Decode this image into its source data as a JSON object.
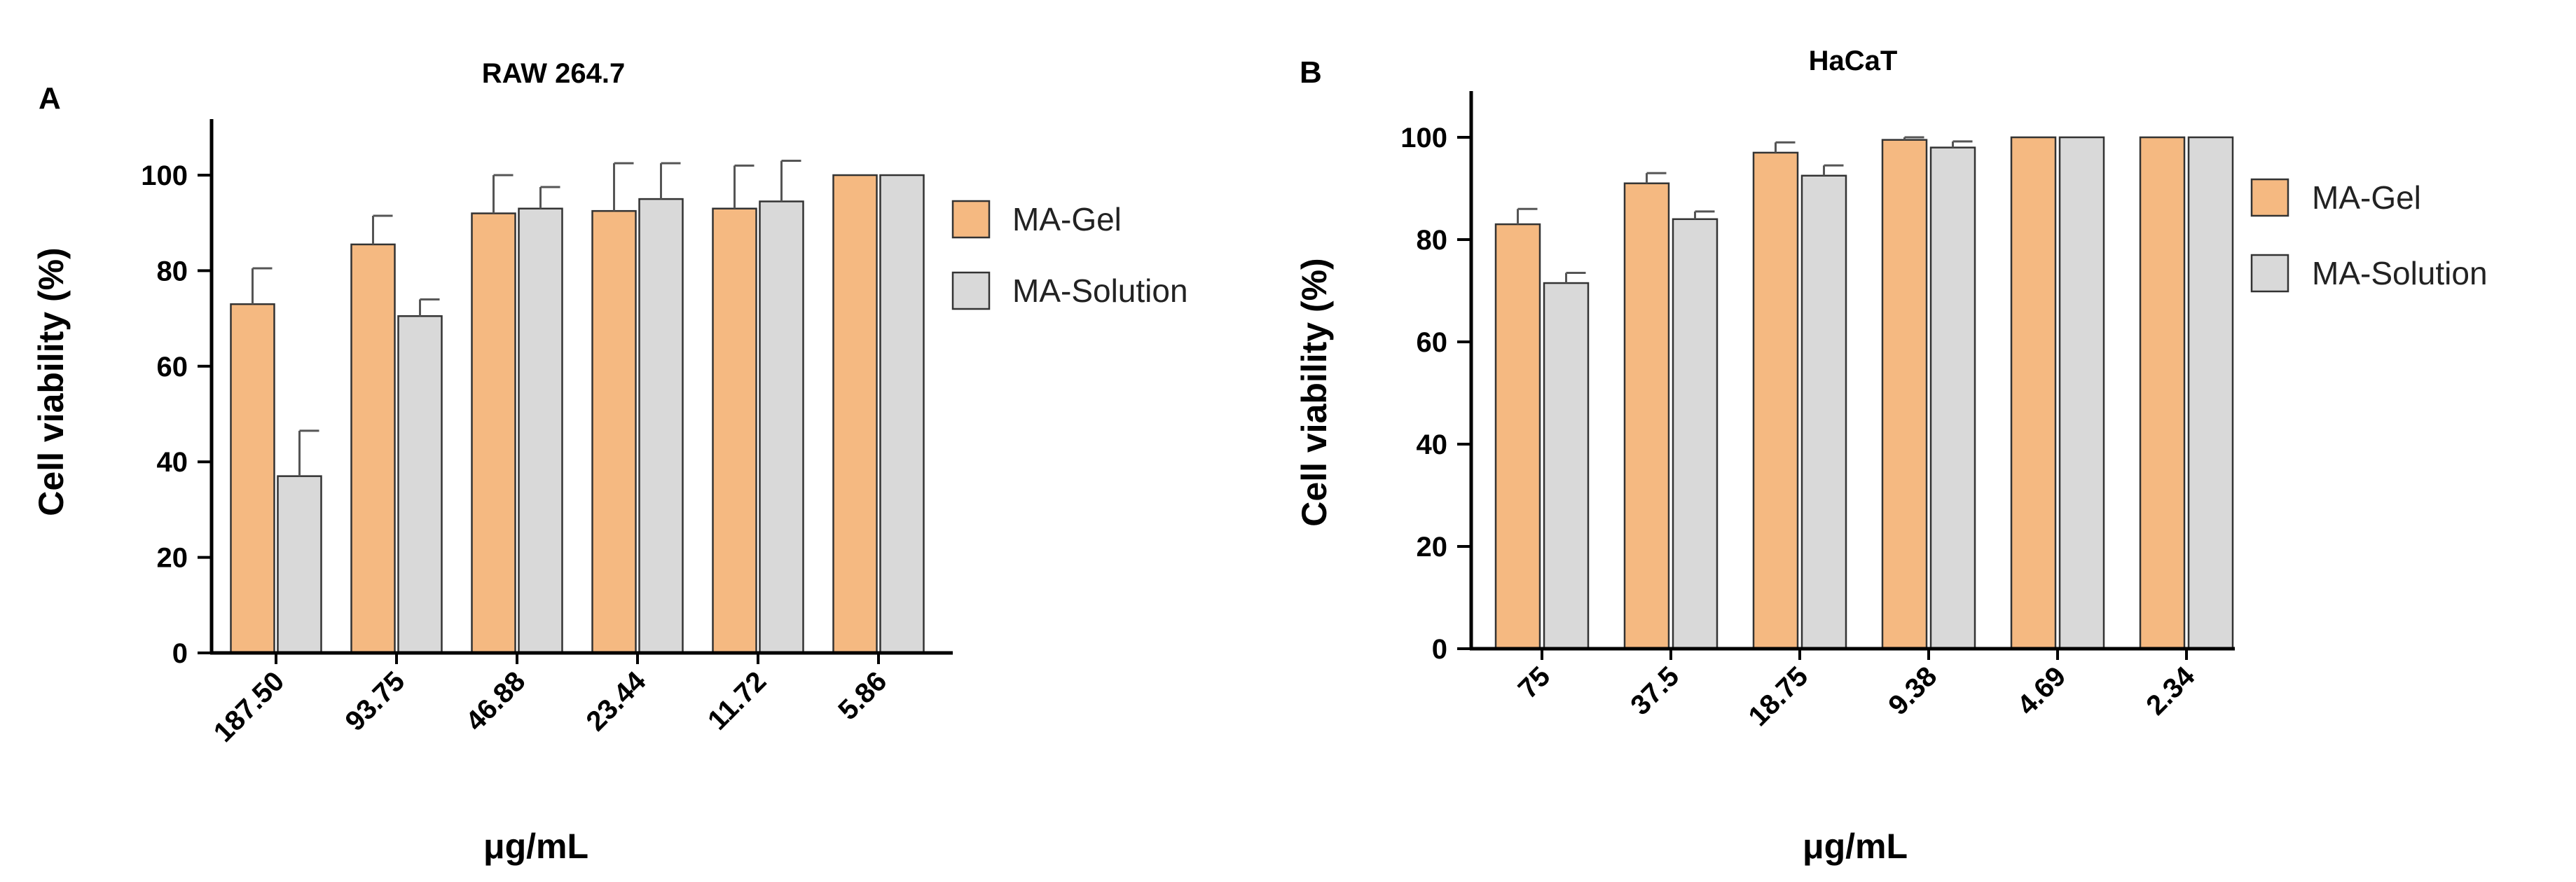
{
  "colors": {
    "gel": "#F5B981",
    "solution": "#D9D9D9"
  },
  "chart_data": [
    {
      "panel": "A",
      "type": "bar",
      "title": "RAW 264.7",
      "xlabel": "μg/mL",
      "ylabel": "Cell viability (%)",
      "ylim": [
        0,
        110
      ],
      "yticks": [
        0,
        20,
        40,
        60,
        80,
        100
      ],
      "categories": [
        "187.50",
        "93.75",
        "46.88",
        "23.44",
        "11.72",
        "5.86"
      ],
      "series": [
        {
          "name": "MA-Gel",
          "values": [
            73,
            85.5,
            92,
            92.5,
            93,
            100
          ],
          "errors": [
            7.5,
            6,
            8,
            10,
            9,
            0
          ]
        },
        {
          "name": "MA-Solution",
          "values": [
            37,
            70.5,
            93,
            95,
            94.5,
            100
          ],
          "errors": [
            9.5,
            3.5,
            4.5,
            7.5,
            8.5,
            0
          ]
        }
      ],
      "legend": "right"
    },
    {
      "panel": "B",
      "type": "bar",
      "title": "HaCaT",
      "xlabel": "μg/mL",
      "ylabel": "Cell viability (%)",
      "ylim": [
        0,
        110
      ],
      "yticks": [
        0,
        20,
        40,
        60,
        80,
        100
      ],
      "categories": [
        "75",
        "37.5",
        "18.75",
        "9.38",
        "4.69",
        "2.34"
      ],
      "series": [
        {
          "name": "MA-Gel",
          "values": [
            83,
            91,
            97,
            99.5,
            100,
            100
          ],
          "errors": [
            3,
            2,
            2,
            0.5,
            0,
            0
          ]
        },
        {
          "name": "MA-Solution",
          "values": [
            71.5,
            84,
            92.5,
            98,
            100,
            100
          ],
          "errors": [
            2,
            1.5,
            2,
            1.2,
            0,
            0
          ]
        }
      ],
      "legend": "right"
    }
  ]
}
